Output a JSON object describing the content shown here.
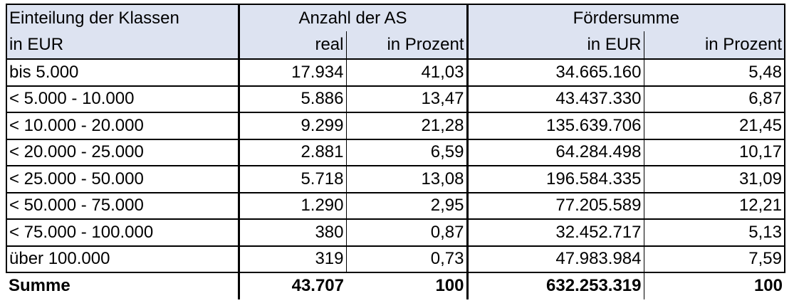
{
  "header": {
    "col1_line1": "Einteilung der Klassen",
    "col1_line2": "in EUR",
    "group_anzahl": "Anzahl der AS",
    "group_foerder": "Fördersumme",
    "sub_real": "real",
    "sub_in_prozent_1": "in Prozent",
    "sub_in_eur": "in EUR",
    "sub_in_prozent_2": "in Prozent"
  },
  "rows": [
    {
      "klasse": "bis 5.000",
      "real": "17.934",
      "prozent_as": "41,03",
      "eur": "34.665.160",
      "prozent_eur": "5,48"
    },
    {
      "klasse": "< 5.000 - 10.000",
      "real": "5.886",
      "prozent_as": "13,47",
      "eur": "43.437.330",
      "prozent_eur": "6,87"
    },
    {
      "klasse": "< 10.000 - 20.000",
      "real": "9.299",
      "prozent_as": "21,28",
      "eur": "135.639.706",
      "prozent_eur": "21,45"
    },
    {
      "klasse": "< 20.000 - 25.000",
      "real": "2.881",
      "prozent_as": "6,59",
      "eur": "64.284.498",
      "prozent_eur": "10,17"
    },
    {
      "klasse": "< 25.000 - 50.000",
      "real": "5.718",
      "prozent_as": "13,08",
      "eur": "196.584.335",
      "prozent_eur": "31,09"
    },
    {
      "klasse": "< 50.000 - 75.000",
      "real": "1.290",
      "prozent_as": "2,95",
      "eur": "77.205.589",
      "prozent_eur": "12,21"
    },
    {
      "klasse": "< 75.000 - 100.000",
      "real": "380",
      "prozent_as": "0,87",
      "eur": "32.452.717",
      "prozent_eur": "5,13"
    },
    {
      "klasse": "über 100.000",
      "real": "319",
      "prozent_as": "0,73",
      "eur": "47.983.984",
      "prozent_eur": "7,59"
    }
  ],
  "summe": {
    "label": "Summe",
    "real": "43.707",
    "prozent_as": "100",
    "eur": "632.253.319",
    "prozent_eur": "100"
  }
}
